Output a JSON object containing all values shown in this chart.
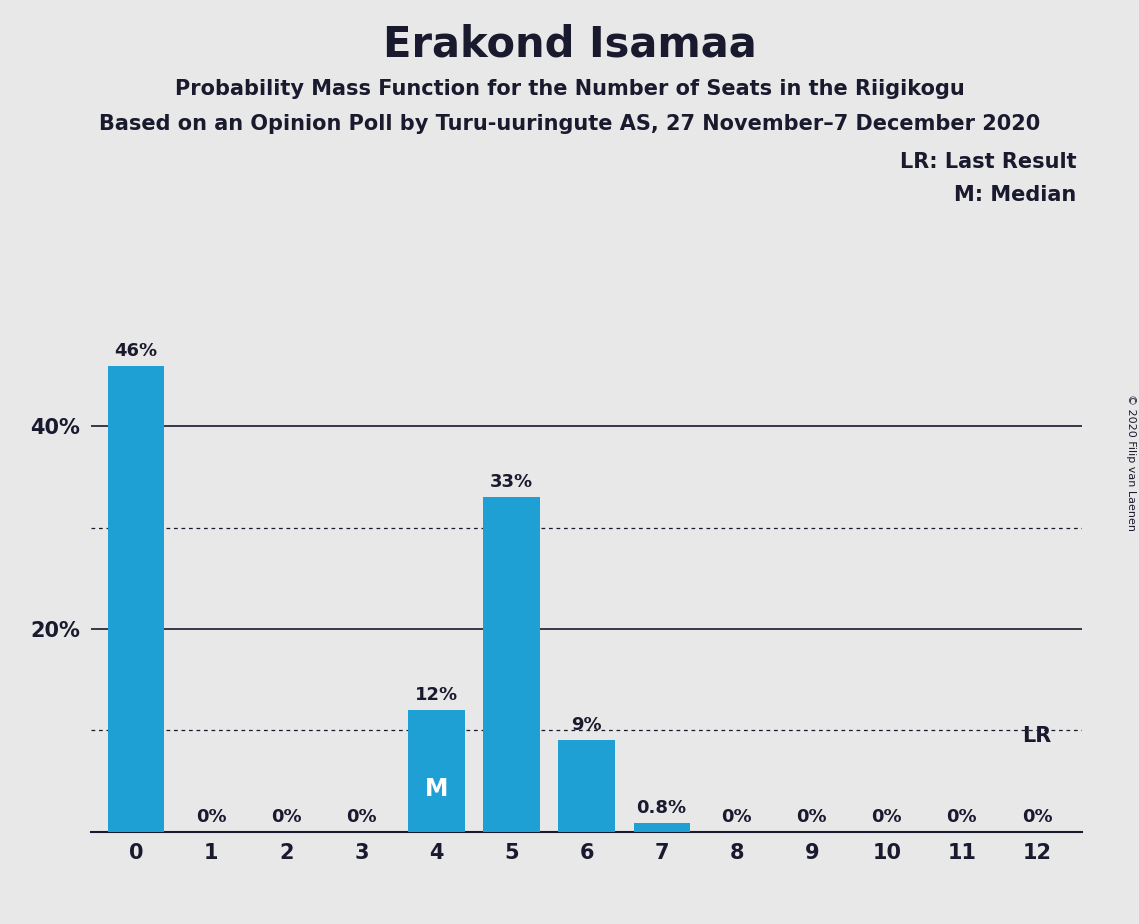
{
  "title": "Erakond Isamaa",
  "subtitle1": "Probability Mass Function for the Number of Seats in the Riigikogu",
  "subtitle2": "Based on an Opinion Poll by Turu-uuringute AS, 27 November–7 December 2020",
  "copyright": "© 2020 Filip van Laenen",
  "categories": [
    0,
    1,
    2,
    3,
    4,
    5,
    6,
    7,
    8,
    9,
    10,
    11,
    12
  ],
  "values": [
    46,
    0,
    0,
    0,
    12,
    33,
    9,
    0.8,
    0,
    0,
    0,
    0,
    0
  ],
  "bar_color": "#1EA0D5",
  "background_color": "#E8E8E8",
  "text_color": "#1A1A2E",
  "solid_grid_lines": [
    20,
    40
  ],
  "dotted_grid_lines": [
    10,
    30
  ],
  "ylim": [
    0,
    52
  ],
  "median_seat": 4,
  "lr_seat": 12,
  "legend_lr": "LR: Last Result",
  "legend_m": "M: Median",
  "lr_label": "LR"
}
